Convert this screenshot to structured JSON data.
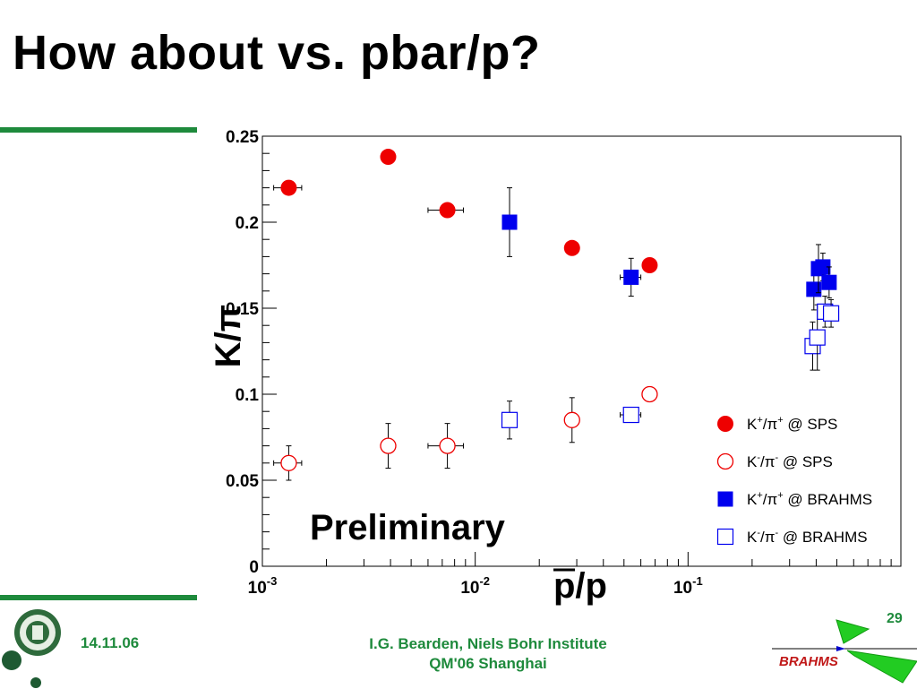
{
  "slide": {
    "title": "How about vs. pbar/p?",
    "date": "14.11.06",
    "author_line1": "I.G. Bearden, Niels Bohr Institute",
    "author_line2": "QM'06 Shanghai",
    "page_number": "29",
    "logo_text": "BRAHMS"
  },
  "colors": {
    "accent_green": "#1e8a3c",
    "sps": "#ee0000",
    "brahms": "#0000ee"
  },
  "chart_data": {
    "type": "scatter",
    "title": "",
    "xlabel": "p/p",
    "xlabel_overline": "p",
    "ylabel": "K/π",
    "x_scale": "log",
    "xlim": [
      0.001,
      1.0
    ],
    "ylim": [
      0,
      0.25
    ],
    "y_ticks": [
      "0",
      "0.05",
      "0.1",
      "0.15",
      "0.2",
      "0.25"
    ],
    "x_ticks": [
      {
        "base": "10",
        "exp": "-3",
        "value": 0.001
      },
      {
        "base": "10",
        "exp": "-2",
        "value": 0.01
      },
      {
        "base": "10",
        "exp": "-1",
        "value": 0.1
      }
    ],
    "annotation": "Preliminary",
    "legend_position": "bottom-right",
    "series": [
      {
        "name": "K⁺/π⁺ @ SPS",
        "legend_k": "K",
        "legend_ksup": "+",
        "legend_pisup": "+",
        "legend_tail": " @ SPS",
        "marker": "filled-circle",
        "color": "#ee0000",
        "points": [
          {
            "x": 0.00133,
            "y": 0.22,
            "xerr": 0.0002,
            "yerr": 0
          },
          {
            "x": 0.0039,
            "y": 0.238,
            "xerr": 0,
            "yerr": 0
          },
          {
            "x": 0.0074,
            "y": 0.207,
            "xerr": 0.0014,
            "yerr": 0
          },
          {
            "x": 0.0285,
            "y": 0.185,
            "xerr": 0,
            "yerr": 0
          },
          {
            "x": 0.066,
            "y": 0.175,
            "xerr": 0,
            "yerr": 0
          }
        ]
      },
      {
        "name": "K⁻/π⁻ @ SPS",
        "legend_k": "K",
        "legend_ksup": "-",
        "legend_pisup": "-",
        "legend_tail": " @ SPS",
        "marker": "open-circle",
        "color": "#ee0000",
        "points": [
          {
            "x": 0.00133,
            "y": 0.06,
            "xerr": 0.0002,
            "yerr": 0.01
          },
          {
            "x": 0.0039,
            "y": 0.07,
            "xerr": 0,
            "yerr": 0.013
          },
          {
            "x": 0.0074,
            "y": 0.07,
            "xerr": 0.0014,
            "yerr": 0.013
          },
          {
            "x": 0.0285,
            "y": 0.085,
            "xerr": 0,
            "yerr": 0.013
          },
          {
            "x": 0.066,
            "y": 0.1,
            "xerr": 0,
            "yerr": 0
          }
        ]
      },
      {
        "name": "K⁺/π⁺ @ BRAHMS",
        "legend_k": "K",
        "legend_ksup": "+",
        "legend_pisup": "+",
        "legend_tail": " @ BRAHMS",
        "marker": "filled-square",
        "color": "#0000ee",
        "points": [
          {
            "x": 0.0145,
            "y": 0.2,
            "xerr": 0,
            "yerr": 0.02
          },
          {
            "x": 0.054,
            "y": 0.168,
            "xerr": 0.006,
            "yerr": 0.011
          },
          {
            "x": 0.39,
            "y": 0.161,
            "xerr": 0,
            "yerr": 0.012
          },
          {
            "x": 0.41,
            "y": 0.173,
            "xerr": 0,
            "yerr": 0.014
          },
          {
            "x": 0.43,
            "y": 0.174,
            "xerr": 0,
            "yerr": 0.008
          },
          {
            "x": 0.46,
            "y": 0.165,
            "xerr": 0,
            "yerr": 0.009
          }
        ]
      },
      {
        "name": "K⁻/π⁻ @ BRAHMS",
        "legend_k": "K",
        "legend_ksup": "-",
        "legend_pisup": "-",
        "legend_tail": " @ BRAHMS",
        "marker": "open-square",
        "color": "#0000ee",
        "points": [
          {
            "x": 0.0145,
            "y": 0.085,
            "xerr": 0,
            "yerr": 0.011
          },
          {
            "x": 0.054,
            "y": 0.088,
            "xerr": 0.006,
            "yerr": 0
          },
          {
            "x": 0.385,
            "y": 0.128,
            "xerr": 0,
            "yerr": 0.014
          },
          {
            "x": 0.405,
            "y": 0.133,
            "xerr": 0,
            "yerr": 0.019
          },
          {
            "x": 0.44,
            "y": 0.148,
            "xerr": 0,
            "yerr": 0.009
          },
          {
            "x": 0.47,
            "y": 0.147,
            "xerr": 0,
            "yerr": 0.008
          }
        ]
      }
    ]
  }
}
